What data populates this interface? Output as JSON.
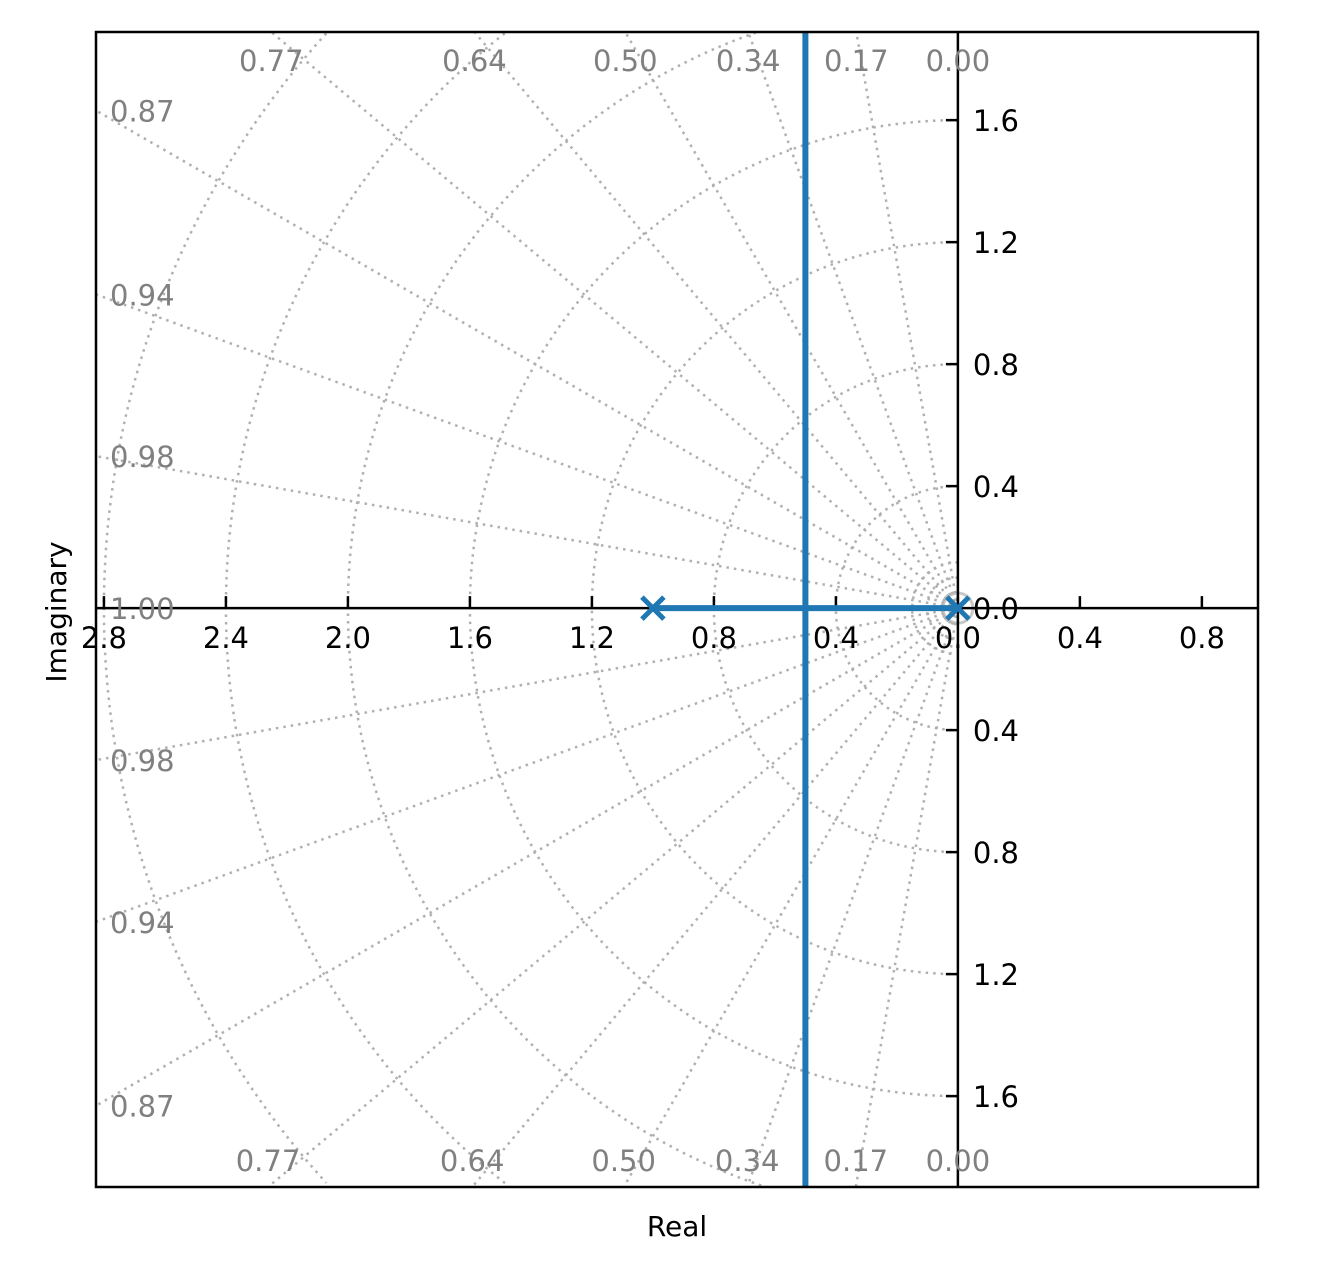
{
  "chart_data": {
    "type": "line",
    "subtype": "root-locus",
    "title": "",
    "xlabel": "Real",
    "ylabel": "Imaginary",
    "xlim": [
      -2.826,
      0.984
    ],
    "ylim": [
      -1.898,
      1.889
    ],
    "grid": true,
    "colors": {
      "locus": "#1f77b4",
      "grid": "#b0b0b0",
      "grid_label": "#808080",
      "axes": "#000000"
    },
    "x_ticks": [
      {
        "value": -2.8,
        "label": "2.8"
      },
      {
        "value": -2.4,
        "label": "2.4"
      },
      {
        "value": -2.0,
        "label": "2.0"
      },
      {
        "value": -1.6,
        "label": "1.6"
      },
      {
        "value": -1.2,
        "label": "1.2"
      },
      {
        "value": -0.8,
        "label": "0.8"
      },
      {
        "value": -0.4,
        "label": "0.4"
      },
      {
        "value": 0.0,
        "label": "0.0"
      },
      {
        "value": 0.4,
        "label": "0.4"
      },
      {
        "value": 0.8,
        "label": "0.8"
      }
    ],
    "y_ticks": [
      {
        "value": 1.6,
        "label": "1.6"
      },
      {
        "value": 1.2,
        "label": "1.2"
      },
      {
        "value": 0.8,
        "label": "0.8"
      },
      {
        "value": 0.4,
        "label": "0.4"
      },
      {
        "value": 0.0,
        "label": "0.0"
      },
      {
        "value": -0.4,
        "label": "0.4"
      },
      {
        "value": -0.8,
        "label": "0.8"
      },
      {
        "value": -1.2,
        "label": "1.2"
      },
      {
        "value": -1.6,
        "label": "1.6"
      }
    ],
    "damping_lines": [
      {
        "zeta_label": "0.00",
        "angle_deg": 90
      },
      {
        "zeta_label": "0.17",
        "angle_deg": 80
      },
      {
        "zeta_label": "0.34",
        "angle_deg": 70
      },
      {
        "zeta_label": "0.50",
        "angle_deg": 60
      },
      {
        "zeta_label": "0.64",
        "angle_deg": 50
      },
      {
        "zeta_label": "0.77",
        "angle_deg": 40
      },
      {
        "zeta_label": "0.87",
        "angle_deg": 30
      },
      {
        "zeta_label": "0.94",
        "angle_deg": 20
      },
      {
        "zeta_label": "0.98",
        "angle_deg": 10
      },
      {
        "zeta_label": "1.00",
        "angle_deg": 0
      }
    ],
    "wn_circles": [
      0.1,
      0.15,
      0.4,
      0.8,
      1.2,
      1.6,
      2.0,
      2.4,
      2.8
    ],
    "poles": [
      [
        -1.0,
        0.0
      ],
      [
        0.0,
        0.0
      ]
    ],
    "locus": [
      {
        "points": [
          [
            -1.0,
            0.0
          ],
          [
            -0.5,
            0.0
          ]
        ]
      },
      {
        "points": [
          [
            0.0,
            0.0
          ],
          [
            -0.5,
            0.0
          ]
        ]
      },
      {
        "points": [
          [
            -0.5,
            0.0
          ],
          [
            -0.5,
            1.889
          ]
        ]
      },
      {
        "points": [
          [
            -0.5,
            0.0
          ],
          [
            -0.5,
            -1.898
          ]
        ]
      }
    ]
  }
}
